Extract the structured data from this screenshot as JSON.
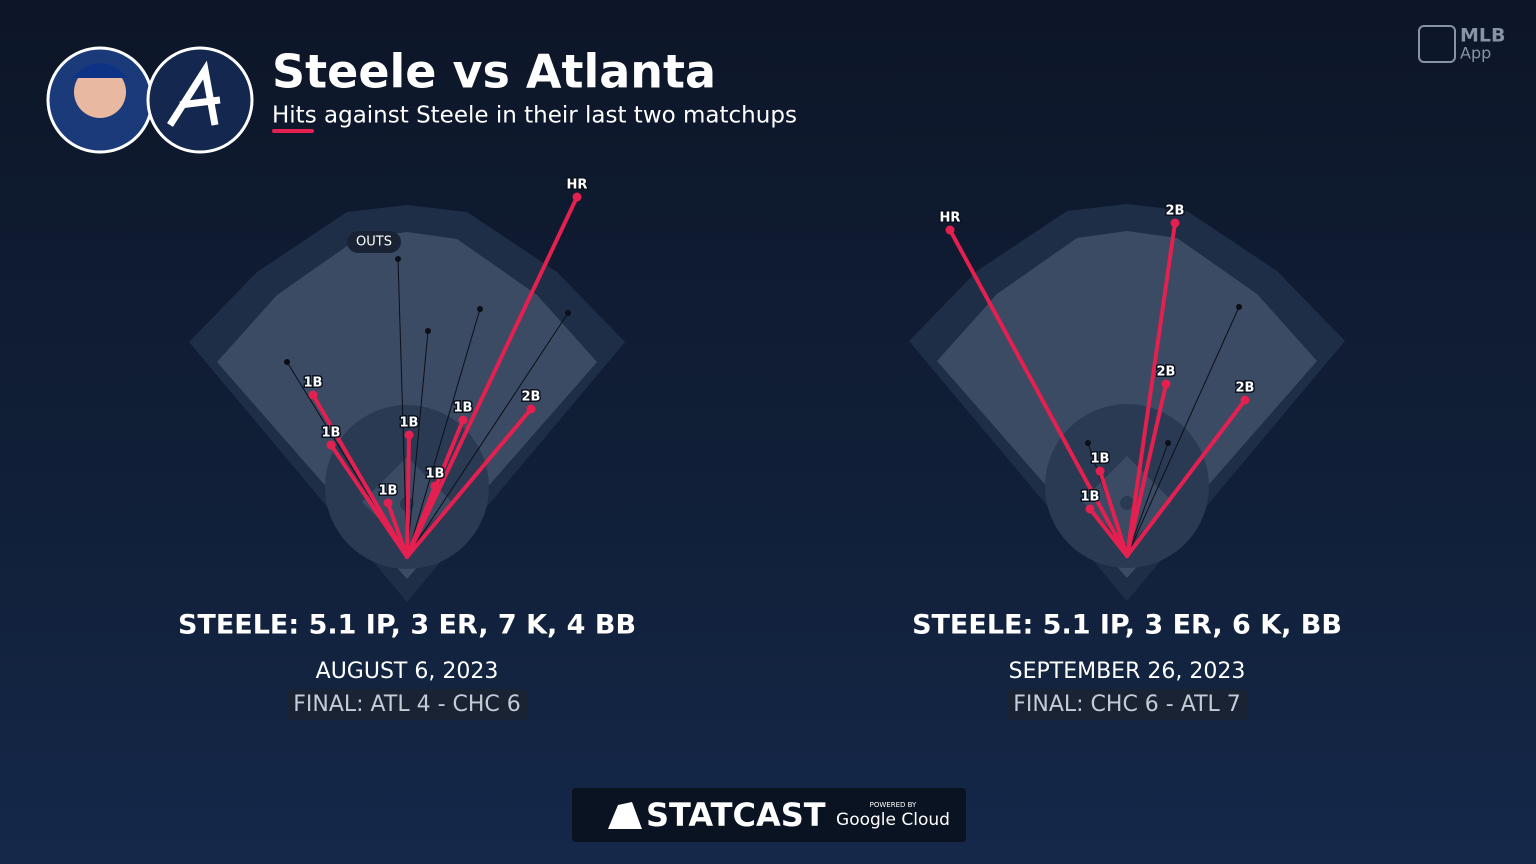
{
  "header": {
    "title": "Steele vs Atlanta",
    "subtitle": "Hits against Steele in their last two matchups"
  },
  "brand": {
    "app": "MLB",
    "app_sub": "App"
  },
  "games": [
    {
      "outs_label": "OUTS",
      "hits": [
        "HR",
        "1B",
        "1B",
        "1B",
        "1B",
        "1B",
        "1B",
        "2B"
      ],
      "line": "STEELE: 5.1 IP, 3 ER, 7 K, 4 BB",
      "date": "AUGUST 6, 2023",
      "final": "FINAL: ATL 4 - CHC 6"
    },
    {
      "hits": [
        "HR",
        "2B",
        "2B",
        "2B",
        "1B",
        "1B"
      ],
      "line": "STEELE: 5.1 IP, 3 ER, 6 K, BB",
      "date": "SEPTEMBER 26, 2023",
      "final": "FINAL: CHC 6 - ATL 7"
    }
  ],
  "footer": {
    "statcast": "STATCAST",
    "powered_by": "POWERED BY",
    "google_cloud": "Google Cloud"
  }
}
